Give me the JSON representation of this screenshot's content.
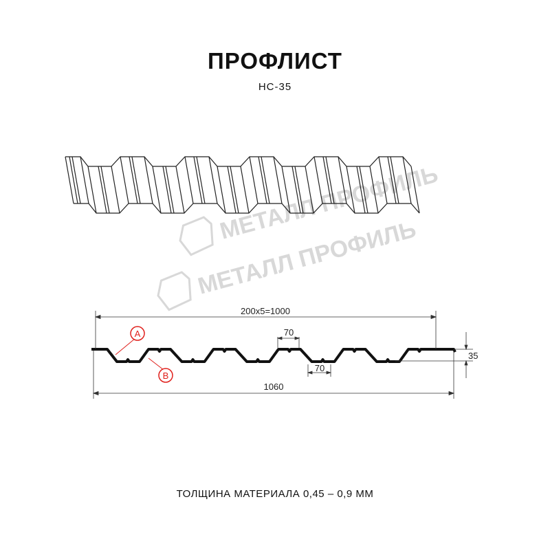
{
  "title": "ПРОФЛИСТ",
  "model": "НС-35",
  "watermark": "МЕТАЛЛ ПРОФИЛЬ",
  "dimensions": {
    "pitch_total": "200x5=1000",
    "top_flat": "70",
    "bottom_flat": "70",
    "height": "35",
    "full_width": "1060"
  },
  "markers": {
    "a": "A",
    "b": "B"
  },
  "marker_color": "#e0201c",
  "thickness_note": "ТОЛЩИНА МАТЕРИАЛА 0,45 – 0,9 ММ"
}
